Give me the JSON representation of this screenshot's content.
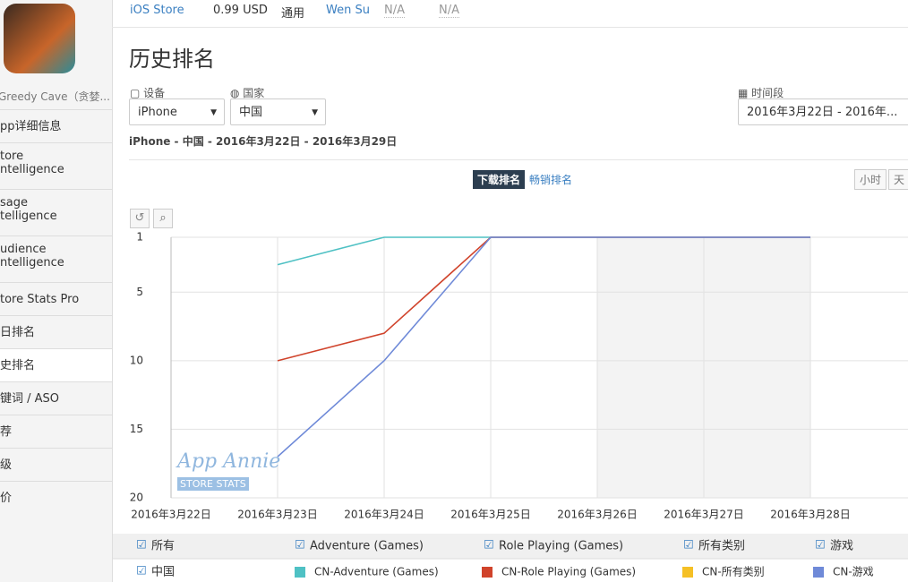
{
  "sidebar": {
    "app_name": "Greedy Cave（贪婪...",
    "items": [
      [
        "pp详细信息"
      ],
      [
        "tore",
        "ntelligence"
      ],
      [
        "sage",
        "telligence"
      ],
      [
        "udience",
        "ntelligence"
      ],
      [
        "tore Stats Pro"
      ],
      [
        "日排名"
      ],
      [
        "史排名"
      ],
      [
        "键词 / ASO"
      ],
      [
        "荐"
      ],
      [
        "级"
      ],
      [
        "价"
      ]
    ],
    "selected": 6
  },
  "header": {
    "store": "iOS Store",
    "price": "0.99 USD",
    "category": "通用",
    "developer": "Wen Su",
    "field1": "N/A",
    "field2": "N/A"
  },
  "page_title": "历史排名",
  "filters": {
    "device_label": "设备",
    "device": "iPhone",
    "country_label": "国家",
    "country": "中国",
    "period_label": "时间段",
    "period": "2016年3月22日 - 2016年..."
  },
  "summary": "iPhone - 中国 - 2016年3月22日 - 2016年3月29日",
  "tabs": [
    "下载排名",
    "畅销排名"
  ],
  "granularity": [
    "小时",
    "天"
  ],
  "watermark": {
    "brand": "App Annie",
    "sub": "STORE STATS"
  },
  "legend_filters": [
    "所有",
    "Adventure (Games)",
    "Role Playing (Games)",
    "所有类别",
    "游戏"
  ],
  "legend_country": "中国",
  "chart_data": {
    "type": "line",
    "categories": [
      "2016年3月22日",
      "2016年3月23日",
      "2016年3月24日",
      "2016年3月25日",
      "2016年3月26日",
      "2016年3月27日",
      "2016年3月28日"
    ],
    "series": [
      {
        "name": "CN-Adventure (Games)",
        "color": "#4fc1c4",
        "values": [
          null,
          3,
          1,
          1,
          1,
          1,
          1
        ]
      },
      {
        "name": "CN-Role Playing (Games)",
        "color": "#d0432b",
        "values": [
          null,
          10,
          8,
          1,
          1,
          1,
          1
        ]
      },
      {
        "name": "CN-所有类别",
        "color": "#f5c025",
        "values": [
          null,
          null,
          null,
          null,
          null,
          null,
          null
        ]
      },
      {
        "name": "CN-游戏",
        "color": "#6f8ad8",
        "values": [
          null,
          17,
          10,
          1,
          1,
          1,
          1
        ]
      }
    ],
    "ylim": [
      20,
      1
    ],
    "yticks": [
      1,
      5,
      10,
      15,
      20
    ],
    "grid": true
  }
}
